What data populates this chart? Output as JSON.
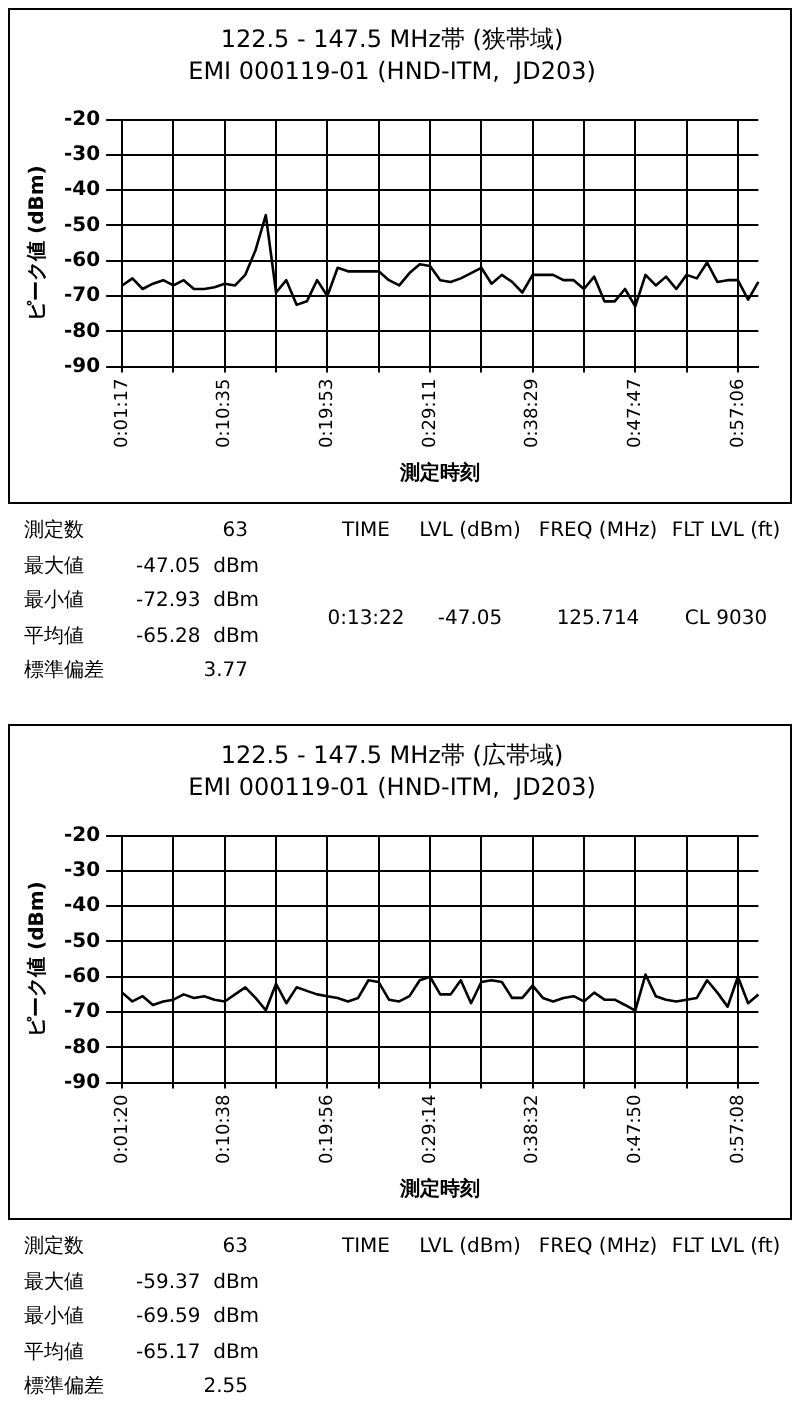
{
  "chart_data": [
    {
      "type": "line",
      "title": "122.5 - 147.5 MHz帯 (狭帯域)",
      "subtitle": "EMI 000119-01 (HND-ITM,  JD203)",
      "xlabel": "測定時刻",
      "ylabel": "ピーク値 (dBm)",
      "categories": [
        "0:01:17",
        null,
        null,
        null,
        null,
        null,
        null,
        null,
        null,
        null,
        "0:10:35",
        null,
        null,
        null,
        null,
        null,
        null,
        null,
        null,
        null,
        "0:19:53",
        null,
        null,
        null,
        null,
        null,
        null,
        null,
        null,
        null,
        "0:29:11",
        null,
        null,
        null,
        null,
        null,
        null,
        null,
        null,
        null,
        "0:38:29",
        null,
        null,
        null,
        null,
        null,
        null,
        null,
        null,
        null,
        "0:47:47",
        null,
        null,
        null,
        null,
        null,
        null,
        null,
        null,
        null,
        "0:57:06",
        null,
        null
      ],
      "series": [
        {
          "color": "#000000",
          "values": [
            -67,
            -65,
            -68,
            -66.5,
            -65.5,
            -67,
            -65.5,
            -68,
            -68,
            -67.5,
            -66.5,
            -67,
            -64,
            -57,
            -47.05,
            -69,
            -65.5,
            -72.5,
            -71.5,
            -65.5,
            -70,
            -62,
            -63,
            -63,
            -63,
            -63,
            -65.5,
            -67,
            -63.5,
            -61,
            -61.5,
            -65.5,
            -66,
            -65,
            -63.5,
            -62,
            -66.5,
            -64,
            -66,
            -69,
            -64,
            -64,
            -64,
            -65.5,
            -65.5,
            -68,
            -64.5,
            -71.5,
            -71.5,
            -68,
            -72.93,
            -64,
            -67,
            -64.5,
            -68,
            -64,
            -65,
            -60.5,
            -66,
            -65.5,
            -65.5,
            -71,
            -66
          ]
        }
      ],
      "ylim": [
        -90,
        -20
      ],
      "yticks": [
        -90,
        -80,
        -70,
        -60,
        -50,
        -40,
        -30,
        -20
      ],
      "grid": true,
      "legend": false,
      "marker": "none",
      "line_style": "solid",
      "annotations": [
        "測定数",
        "63",
        "最大値",
        "-47.05  dBm",
        "最小値",
        "-72.93  dBm",
        "平均値",
        "-65.28  dBm",
        "標準偏差",
        "3.77",
        "TIME",
        "LVL (dBm)",
        "FREQ (MHz)",
        "FLT LVL (ft)",
        "0:13:22",
        "-47.05",
        "125.714",
        "CL 9030"
      ]
    },
    {
      "type": "line",
      "title": "122.5 - 147.5 MHz帯 (広帯域)",
      "subtitle": "EMI 000119-01 (HND-ITM,  JD203)",
      "xlabel": "測定時刻",
      "ylabel": "ピーク値 (dBm)",
      "categories": [
        "0:01:20",
        null,
        null,
        null,
        null,
        null,
        null,
        null,
        null,
        null,
        "0:10:38",
        null,
        null,
        null,
        null,
        null,
        null,
        null,
        null,
        null,
        "0:19:56",
        null,
        null,
        null,
        null,
        null,
        null,
        null,
        null,
        null,
        "0:29:14",
        null,
        null,
        null,
        null,
        null,
        null,
        null,
        null,
        null,
        "0:38:32",
        null,
        null,
        null,
        null,
        null,
        null,
        null,
        null,
        null,
        "0:47:50",
        null,
        null,
        null,
        null,
        null,
        null,
        null,
        null,
        null,
        "0:57:08",
        null,
        null
      ],
      "series": [
        {
          "color": "#000000",
          "values": [
            -64.5,
            -67,
            -65.5,
            -68,
            -67,
            -66.5,
            -65,
            -66,
            -65.5,
            -66.5,
            -67,
            -65,
            -63,
            -66,
            -69.5,
            -62,
            -67.5,
            -63,
            -64,
            -65,
            -65.5,
            -66,
            -67,
            -66,
            -61,
            -61.5,
            -66.5,
            -67,
            -65.5,
            -61,
            -60,
            -65,
            -65,
            -61,
            -67.5,
            -61.5,
            -61,
            -61.5,
            -66,
            -66,
            -62.5,
            -66,
            -67,
            -66,
            -65.5,
            -67,
            -64.5,
            -66.5,
            -66.5,
            -68,
            -69.59,
            -59.37,
            -65.5,
            -66.5,
            -67,
            -66.5,
            -66,
            -61,
            -64.5,
            -68.5,
            -60,
            -67.5,
            -65
          ]
        }
      ],
      "ylim": [
        -90,
        -20
      ],
      "yticks": [
        -90,
        -80,
        -70,
        -60,
        -50,
        -40,
        -30,
        -20
      ],
      "grid": true,
      "legend": false,
      "marker": "none",
      "line_style": "solid",
      "annotations": [
        "測定数",
        "63",
        "最大値",
        "-59.37  dBm",
        "最小値",
        "-69.59  dBm",
        "平均値",
        "-65.17  dBm",
        "標準偏差",
        "2.55",
        "TIME",
        "LVL (dBm)",
        "FREQ (MHz)",
        "FLT LVL (ft)"
      ]
    }
  ]
}
